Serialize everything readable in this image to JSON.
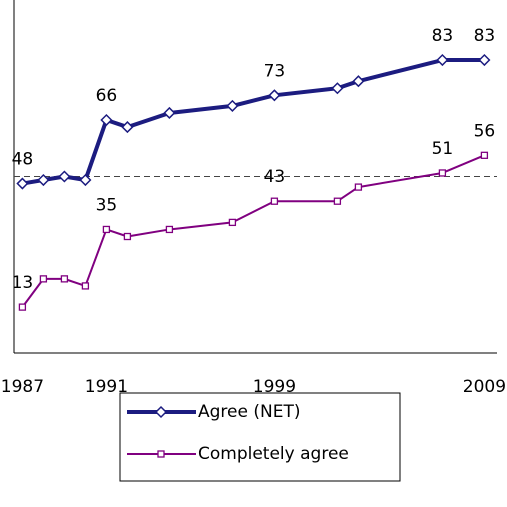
{
  "chart_data": {
    "type": "line",
    "x": [
      1987,
      1988,
      1989,
      1990,
      1991,
      1992,
      1994,
      1997,
      1999,
      2002,
      2003,
      2007,
      2009
    ],
    "series": [
      {
        "name": "Agree (NET)",
        "color": "#1c1c80",
        "marker": "diamond",
        "values": [
          48,
          49,
          50,
          49,
          66,
          64,
          68,
          70,
          73,
          75,
          77,
          83,
          83
        ],
        "value_labels": [
          "48",
          null,
          null,
          null,
          "66",
          null,
          null,
          null,
          "73",
          null,
          null,
          "83",
          "83"
        ]
      },
      {
        "name": "Completely agree",
        "color": "#800080",
        "marker": "square",
        "values": [
          13,
          21,
          21,
          19,
          35,
          33,
          35,
          37,
          43,
          43,
          47,
          51,
          56
        ],
        "value_labels": [
          "13",
          null,
          null,
          null,
          "35",
          null,
          null,
          null,
          "43",
          null,
          null,
          "51",
          "56"
        ]
      }
    ],
    "xlim": [
      1986.6,
      2009.6
    ],
    "xticks": [
      1987,
      1991,
      1999,
      2009
    ],
    "ylim": [
      0,
      100
    ],
    "reference_line": 50,
    "legend": "bottom"
  }
}
